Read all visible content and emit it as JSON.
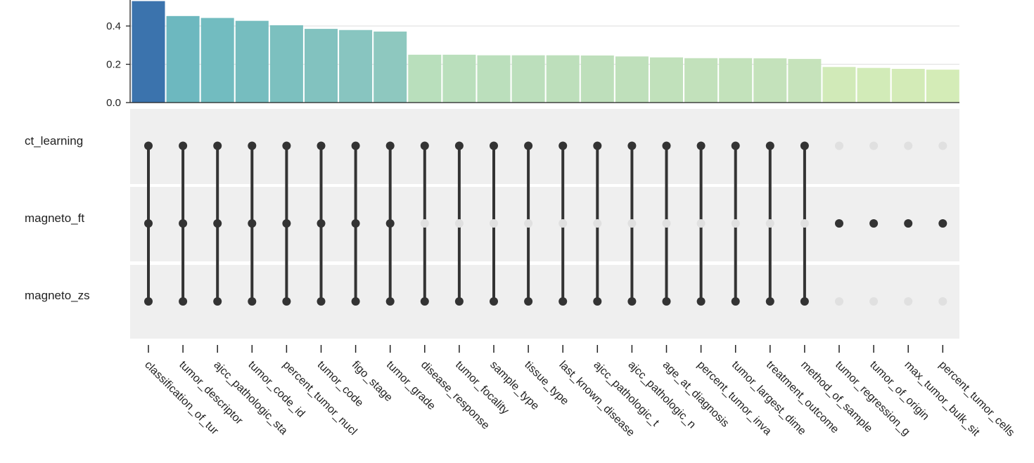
{
  "chart_data": {
    "type": "upset",
    "y_axis": {
      "ylim": [
        0,
        0.53
      ],
      "ticks": [
        "0.0",
        "0.2",
        "0.4"
      ]
    },
    "sets": [
      "ct_learning",
      "magneto_ft",
      "magneto_zs"
    ],
    "columns": [
      "classification_of_tur",
      "tumor_descriptor",
      "ajcc_pathologic_sta",
      "tumor_code_id",
      "percent_tumor_nucl",
      "tumor_code",
      "figo_stage",
      "tumor_grade",
      "disease_response",
      "tumor_focality",
      "sample_type",
      "tissue_type",
      "last_known_disease",
      "ajcc_pathologic_t",
      "ajcc_pathologic_n",
      "age_at_diagnosis",
      "percent_tumor_inva",
      "tumor_largest_dime",
      "treatment_outcome",
      "method_of_sample",
      "tumor_regression_g",
      "tumor_of_origin",
      "max_tumor_bulk_sit",
      "percent_tumor_cells"
    ],
    "values": [
      0.53,
      0.452,
      0.442,
      0.427,
      0.404,
      0.385,
      0.379,
      0.371,
      0.25,
      0.25,
      0.247,
      0.247,
      0.247,
      0.246,
      0.241,
      0.236,
      0.232,
      0.232,
      0.231,
      0.228,
      0.186,
      0.181,
      0.176,
      0.172
    ],
    "membership": [
      [
        1,
        1,
        1
      ],
      [
        1,
        1,
        1
      ],
      [
        1,
        1,
        1
      ],
      [
        1,
        1,
        1
      ],
      [
        1,
        1,
        1
      ],
      [
        1,
        1,
        1
      ],
      [
        1,
        1,
        1
      ],
      [
        1,
        1,
        1
      ],
      [
        1,
        0,
        1
      ],
      [
        1,
        0,
        1
      ],
      [
        1,
        0,
        1
      ],
      [
        1,
        0,
        1
      ],
      [
        1,
        0,
        1
      ],
      [
        1,
        0,
        1
      ],
      [
        1,
        0,
        1
      ],
      [
        1,
        0,
        1
      ],
      [
        1,
        0,
        1
      ],
      [
        1,
        0,
        1
      ],
      [
        1,
        0,
        1
      ],
      [
        1,
        0,
        1
      ],
      [
        0,
        1,
        0
      ],
      [
        0,
        1,
        0
      ],
      [
        0,
        1,
        0
      ],
      [
        0,
        1,
        0
      ]
    ],
    "bar_colors": [
      "#3b73ad",
      "#6db8bf",
      "#72bcc0",
      "#76bdbf",
      "#7cc0bf",
      "#82c2bf",
      "#88c5c0",
      "#8ec8bf",
      "#b9dfbc",
      "#badfbc",
      "#bbdfbc",
      "#bcdfbc",
      "#bddfbb",
      "#bedfbb",
      "#bfe0bb",
      "#c1e1bb",
      "#c2e1bb",
      "#c3e2bb",
      "#c4e2bb",
      "#c6e3bb",
      "#d1eab8",
      "#d2ebb8",
      "#d3ebb7",
      "#d4ecb7"
    ],
    "matrix_background": "#efefef",
    "dot_active_color": "#333333",
    "dot_inactive_color": "#e0e0e0",
    "grid": true
  }
}
